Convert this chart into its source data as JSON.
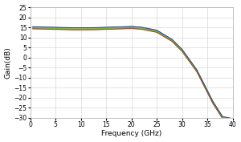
{
  "title": "",
  "xlabel": "Frequency (GHz)",
  "ylabel": "Gain(dB)",
  "xlim": [
    0,
    40
  ],
  "ylim": [
    -30,
    25
  ],
  "yticks": [
    -30,
    -25,
    -20,
    -15,
    -10,
    -5,
    0,
    5,
    10,
    15,
    20,
    25
  ],
  "xticks": [
    0,
    5,
    10,
    15,
    20,
    25,
    30,
    35,
    40
  ],
  "colors": [
    "#4472c4",
    "#ed7d31",
    "#a5a5a5",
    "#ffc000",
    "#5b9bd5",
    "#70ad47",
    "#264478",
    "#9e480e"
  ],
  "background_color": "#ffffff",
  "grid_color": "#d9d9d9",
  "offsets": [
    -0.4,
    -0.2,
    0.05,
    0.2,
    0.35,
    -0.1,
    0.5,
    -0.6
  ]
}
